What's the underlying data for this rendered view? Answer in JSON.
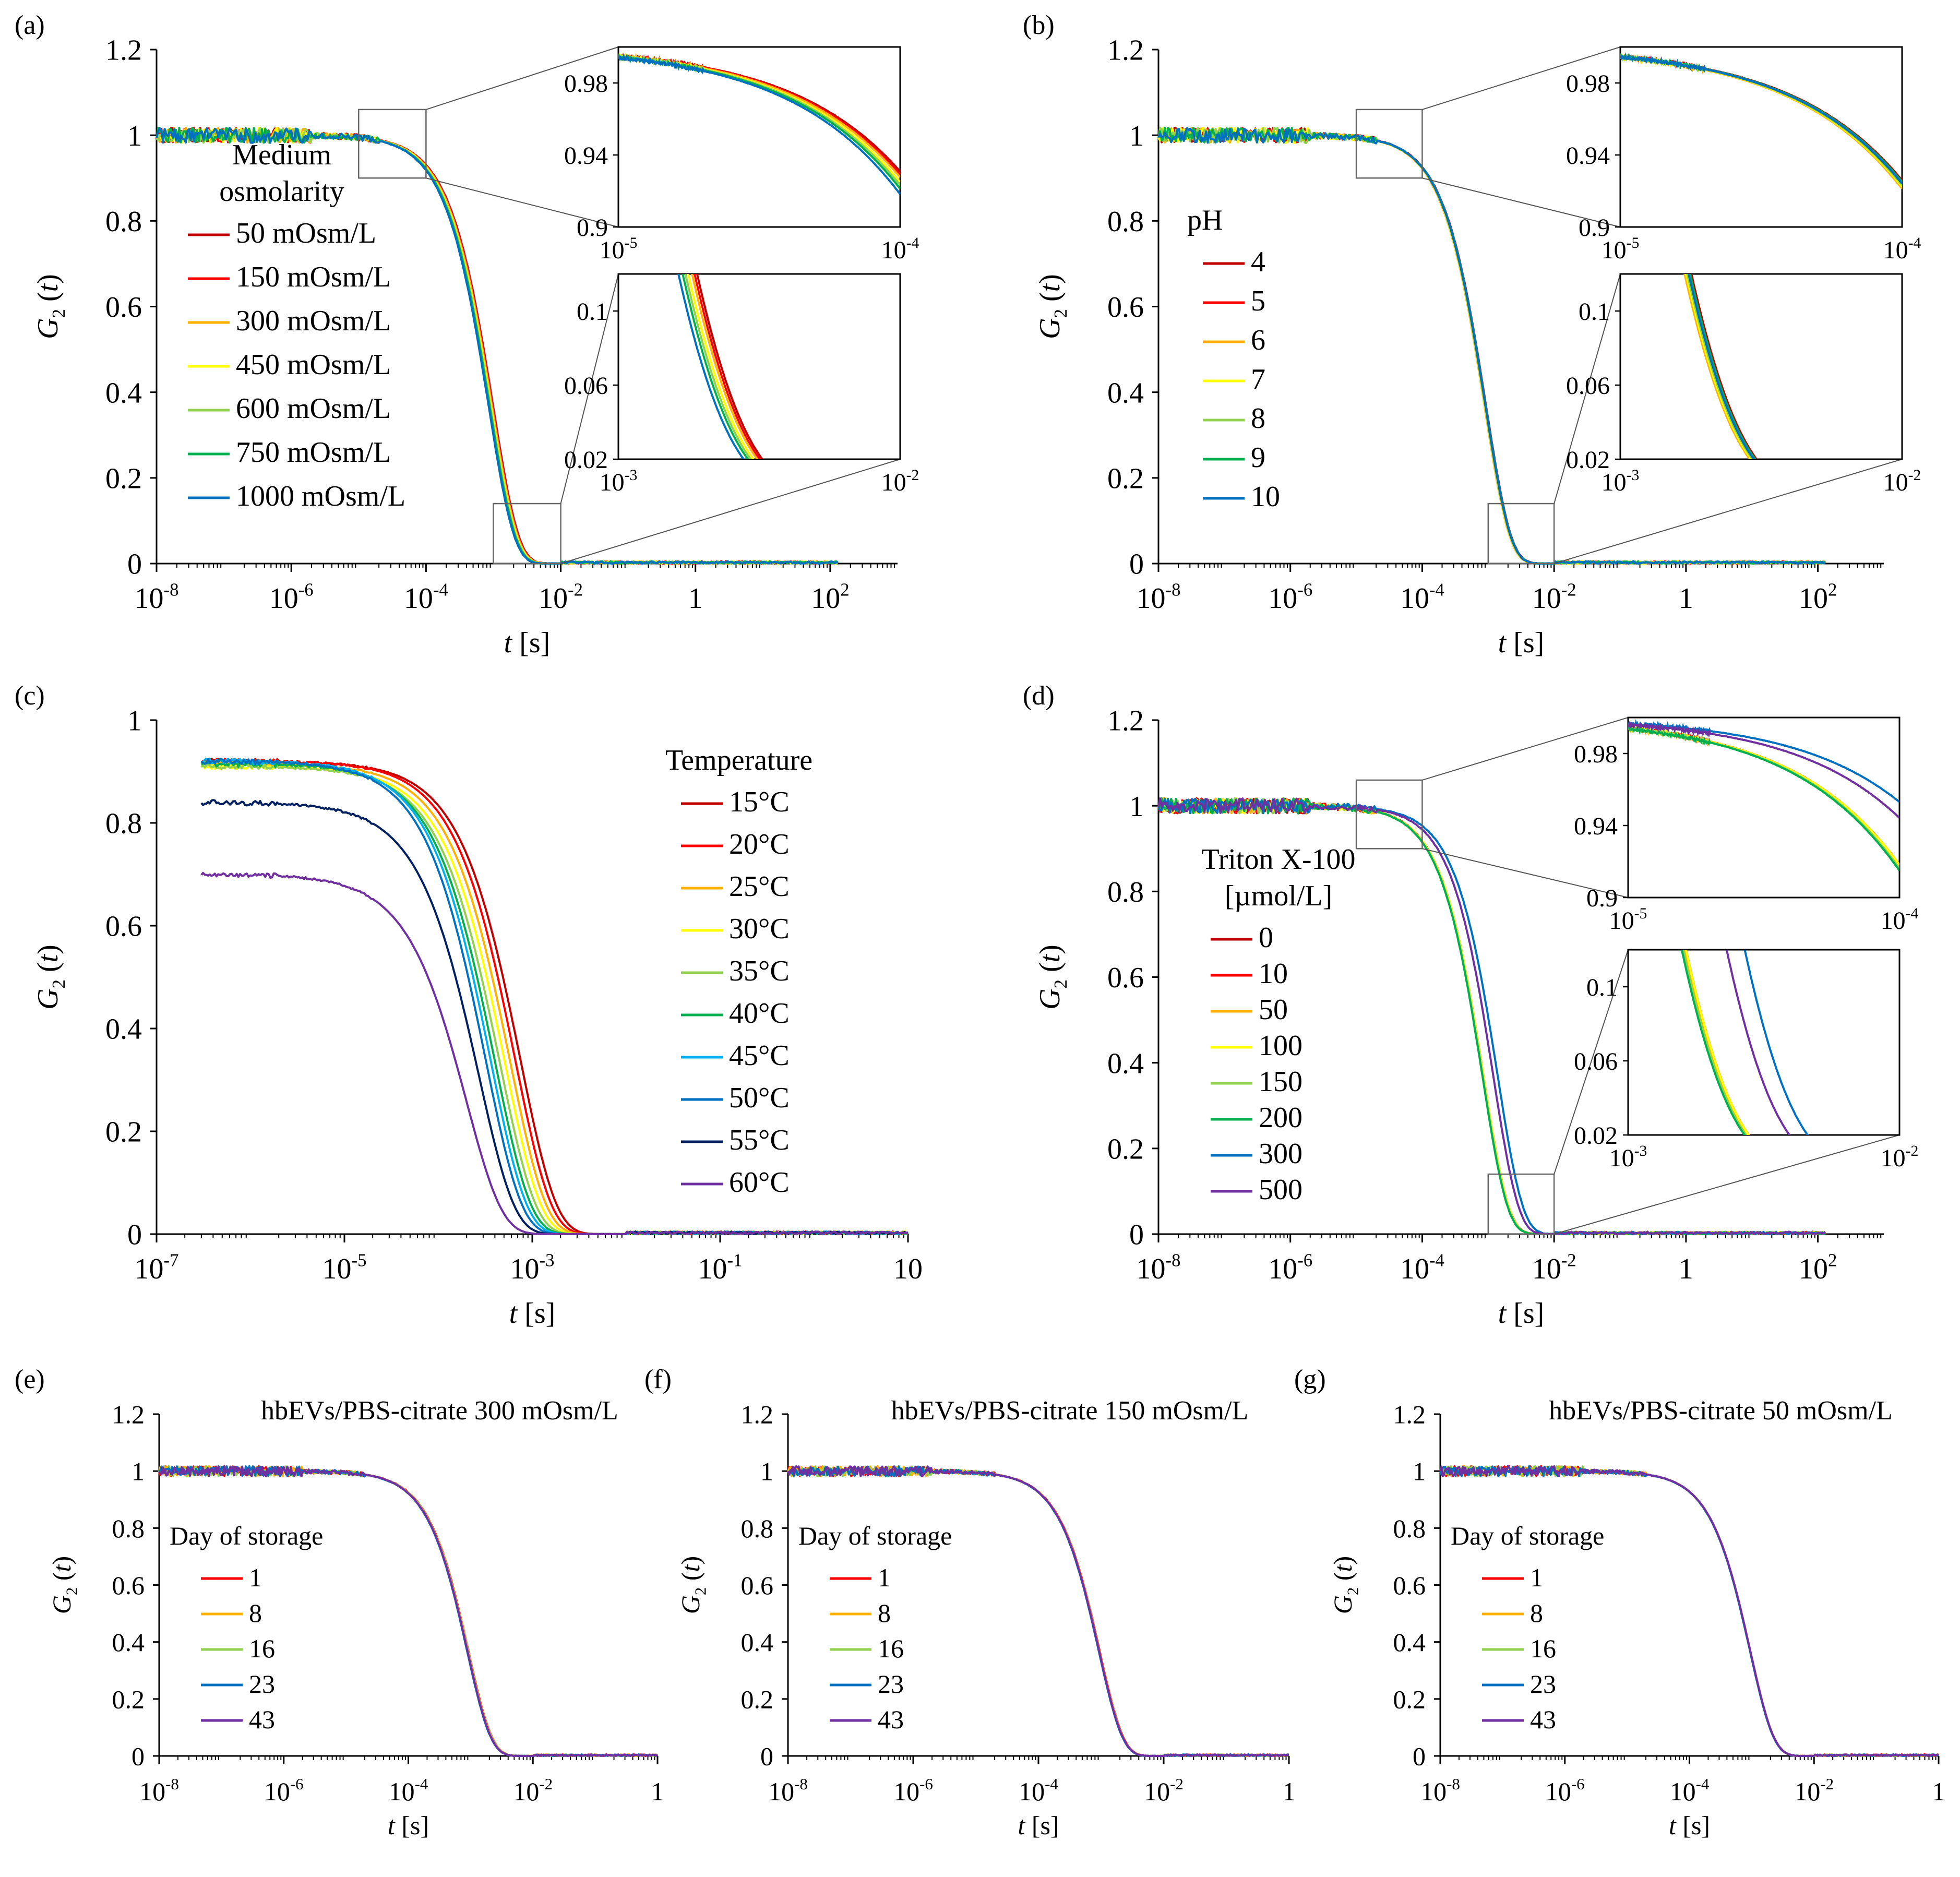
{
  "figure": {
    "colors": {
      "dark_red": "#c00000",
      "red": "#ff0000",
      "orange": "#ffb000",
      "yellow": "#ffff00",
      "light_green": "#92d050",
      "green": "#00b050",
      "cyan": "#00b0f0",
      "blue": "#0070c0",
      "dark_blue": "#002060",
      "purple": "#7030a0"
    }
  },
  "chart_data": [
    {
      "panel": "(a)",
      "type": "line",
      "xscale": "log",
      "xlim": [
        1e-08,
        1000
      ],
      "ylim": [
        0,
        1.2
      ],
      "xticks": [
        "10-8",
        "10-6",
        "10-4",
        "10-2",
        "1",
        "102"
      ],
      "yticks": [
        "0",
        "0.2",
        "0.4",
        "0.6",
        "0.8",
        "1",
        "1.2"
      ],
      "xlabel": "t [s]",
      "ylabel": "G2 (t)",
      "legend_title": [
        "Medium",
        "osmolarity"
      ],
      "series": [
        {
          "name": "50 mOsm/L",
          "color": "#c00000",
          "tau": 0.00099
        },
        {
          "name": "150 mOsm/L",
          "color": "#ff0000",
          "tau": 0.00097
        },
        {
          "name": "300 mOsm/L",
          "color": "#ffb000",
          "tau": 0.00095
        },
        {
          "name": "450 mOsm/L",
          "color": "#ffff00",
          "tau": 0.00092
        },
        {
          "name": "600 mOsm/L",
          "color": "#92d050",
          "tau": 0.0009
        },
        {
          "name": "750 mOsm/L",
          "color": "#00b050",
          "tau": 0.00088
        },
        {
          "name": "1000 mOsm/L",
          "color": "#0070c0",
          "tau": 0.00085
        }
      ],
      "insets": [
        {
          "xlim": [
            1e-05,
            0.0001
          ],
          "ylim": [
            0.9,
            1.0
          ],
          "xticks": [
            "10-5",
            "10-4"
          ],
          "yticks": [
            "0.9",
            "0.94",
            "0.98"
          ]
        },
        {
          "xlim": [
            0.001,
            0.01
          ],
          "ylim": [
            0.02,
            0.12
          ],
          "xticks": [
            "10-3",
            "10-2"
          ],
          "yticks": [
            "0.02",
            "0.06",
            "0.1"
          ]
        }
      ]
    },
    {
      "panel": "(b)",
      "type": "line",
      "xscale": "log",
      "xlim": [
        1e-08,
        1000
      ],
      "ylim": [
        0,
        1.2
      ],
      "xticks": [
        "10-8",
        "10-6",
        "10-4",
        "10-2",
        "1",
        "102"
      ],
      "yticks": [
        "0",
        "0.2",
        "0.4",
        "0.6",
        "0.8",
        "1",
        "1.2"
      ],
      "xlabel": "t [s]",
      "ylabel": "G2 (t)",
      "legend_title": [
        "pH"
      ],
      "series": [
        {
          "name": "4",
          "color": "#c00000",
          "tau": 0.00093
        },
        {
          "name": "5",
          "color": "#ff0000",
          "tau": 0.00091
        },
        {
          "name": "6",
          "color": "#ffb000",
          "tau": 0.00088
        },
        {
          "name": "7",
          "color": "#ffff00",
          "tau": 0.00089
        },
        {
          "name": "8",
          "color": "#92d050",
          "tau": 0.0009
        },
        {
          "name": "9",
          "color": "#00b050",
          "tau": 0.00092
        },
        {
          "name": "10",
          "color": "#0070c0",
          "tau": 0.00091
        }
      ],
      "insets": [
        {
          "xlim": [
            1e-05,
            0.0001
          ],
          "ylim": [
            0.9,
            1.0
          ],
          "xticks": [
            "10-5",
            "10-4"
          ],
          "yticks": [
            "0.9",
            "0.94",
            "0.98"
          ]
        },
        {
          "xlim": [
            0.001,
            0.01
          ],
          "ylim": [
            0.02,
            0.12
          ],
          "xticks": [
            "10-3",
            "10-2"
          ],
          "yticks": [
            "0.02",
            "0.06",
            "0.1"
          ]
        }
      ]
    },
    {
      "panel": "(c)",
      "type": "line",
      "xscale": "log",
      "xlim": [
        1e-07,
        10
      ],
      "ylim": [
        0,
        1.0
      ],
      "xticks": [
        "10-7",
        "10-5",
        "10-3",
        "10-1",
        "10"
      ],
      "yticks": [
        "0",
        "0.2",
        "0.4",
        "0.6",
        "0.8",
        "1"
      ],
      "xlabel": "t [s]",
      "ylabel": "G2 (t)",
      "legend_title": [
        "Temperature"
      ],
      "series": [
        {
          "name": "15°C",
          "color": "#c00000",
          "tau": 0.00075,
          "amp": 0.92
        },
        {
          "name": "20°C",
          "color": "#ff0000",
          "tau": 0.00066,
          "amp": 0.92
        },
        {
          "name": "25°C",
          "color": "#ffb000",
          "tau": 0.00058,
          "amp": 0.915
        },
        {
          "name": "30°C",
          "color": "#ffff00",
          "tau": 0.00051,
          "amp": 0.91
        },
        {
          "name": "35°C",
          "color": "#92d050",
          "tau": 0.00045,
          "amp": 0.91
        },
        {
          "name": "40°C",
          "color": "#00b050",
          "tau": 0.0004,
          "amp": 0.915
        },
        {
          "name": "45°C",
          "color": "#00b0f0",
          "tau": 0.00036,
          "amp": 0.92
        },
        {
          "name": "50°C",
          "color": "#0070c0",
          "tau": 0.00032,
          "amp": 0.92
        },
        {
          "name": "55°C",
          "color": "#002060",
          "tau": 0.00027,
          "amp": 0.84
        },
        {
          "name": "60°C",
          "color": "#7030a0",
          "tau": 0.0002,
          "amp": 0.7
        }
      ]
    },
    {
      "panel": "(d)",
      "type": "line",
      "xscale": "log",
      "xlim": [
        1e-08,
        1000
      ],
      "ylim": [
        0,
        1.2
      ],
      "xticks": [
        "10-8",
        "10-6",
        "10-4",
        "10-2",
        "1",
        "102"
      ],
      "yticks": [
        "0",
        "0.2",
        "0.4",
        "0.6",
        "0.8",
        "1",
        "1.2"
      ],
      "xlabel": "t [s]",
      "ylabel": "G2 (t)",
      "legend_title": [
        "Triton X-100",
        "[µmol/L]"
      ],
      "series": [
        {
          "name": "0",
          "color": "#c00000",
          "tau": 0.00085
        },
        {
          "name": "10",
          "color": "#ff0000",
          "tau": 0.00085
        },
        {
          "name": "50",
          "color": "#ffb000",
          "tau": 0.00084
        },
        {
          "name": "100",
          "color": "#ffff00",
          "tau": 0.00085
        },
        {
          "name": "150",
          "color": "#92d050",
          "tau": 0.00083
        },
        {
          "name": "200",
          "color": "#00b050",
          "tau": 0.00082
        },
        {
          "name": "300",
          "color": "#0070c0",
          "tau": 0.0014
        },
        {
          "name": "500",
          "color": "#7030a0",
          "tau": 0.0012
        }
      ],
      "insets": [
        {
          "xlim": [
            1e-05,
            0.0001
          ],
          "ylim": [
            0.9,
            1.0
          ],
          "xticks": [
            "10-5",
            "10-4"
          ],
          "yticks": [
            "0.9",
            "0.94",
            "0.98"
          ]
        },
        {
          "xlim": [
            0.001,
            0.01
          ],
          "ylim": [
            0.02,
            0.12
          ],
          "xticks": [
            "10-3",
            "10-2"
          ],
          "yticks": [
            "0.02",
            "0.06",
            "0.1"
          ]
        }
      ]
    },
    {
      "panel": "(e)",
      "type": "line",
      "xscale": "log",
      "xlim": [
        1e-08,
        1
      ],
      "ylim": [
        0,
        1.2
      ],
      "xticks": [
        "10-8",
        "10-6",
        "10-4",
        "10-2",
        "1"
      ],
      "yticks": [
        "0",
        "0.2",
        "0.4",
        "0.6",
        "0.8",
        "1",
        "1.2"
      ],
      "xlabel": "t [s]",
      "ylabel": "G2 (t)",
      "title": "hbEVs/PBS-citrate 300 mOsm/L",
      "legend_title": [
        "Day of storage"
      ],
      "series": [
        {
          "name": "1",
          "color": "#ff0000",
          "tau": 0.00092
        },
        {
          "name": "8",
          "color": "#ffb000",
          "tau": 0.00091
        },
        {
          "name": "16",
          "color": "#92d050",
          "tau": 0.0009
        },
        {
          "name": "23",
          "color": "#0070c0",
          "tau": 0.00088
        },
        {
          "name": "43",
          "color": "#7030a0",
          "tau": 0.00089
        }
      ]
    },
    {
      "panel": "(f)",
      "type": "line",
      "xscale": "log",
      "xlim": [
        1e-08,
        1
      ],
      "ylim": [
        0,
        1.2
      ],
      "xticks": [
        "10-8",
        "10-6",
        "10-4",
        "10-2",
        "1"
      ],
      "yticks": [
        "0",
        "0.2",
        "0.4",
        "0.6",
        "0.8",
        "1",
        "1.2"
      ],
      "xlabel": "t [s]",
      "ylabel": "G2 (t)",
      "title": "hbEVs/PBS-citrate 150 mOsm/L",
      "legend_title": [
        "Day of storage"
      ],
      "series": [
        {
          "name": "1",
          "color": "#ff0000",
          "tau": 0.00095
        },
        {
          "name": "8",
          "color": "#ffb000",
          "tau": 0.00094
        },
        {
          "name": "16",
          "color": "#92d050",
          "tau": 0.00093
        },
        {
          "name": "23",
          "color": "#0070c0",
          "tau": 0.00092
        },
        {
          "name": "43",
          "color": "#7030a0",
          "tau": 0.00093
        }
      ]
    },
    {
      "panel": "(g)",
      "type": "line",
      "xscale": "log",
      "xlim": [
        1e-08,
        1
      ],
      "ylim": [
        0,
        1.2
      ],
      "xticks": [
        "10-8",
        "10-6",
        "10-4",
        "10-2",
        "1"
      ],
      "yticks": [
        "0",
        "0.2",
        "0.4",
        "0.6",
        "0.8",
        "1",
        "1.2"
      ],
      "xlabel": "t [s]",
      "ylabel": "G2 (t)",
      "title": "hbEVs/PBS-citrate 50 mOsm/L",
      "legend_title": [
        "Day of storage"
      ],
      "series": [
        {
          "name": "1",
          "color": "#ff0000",
          "tau": 0.00095
        },
        {
          "name": "8",
          "color": "#ffb000",
          "tau": 0.00095
        },
        {
          "name": "16",
          "color": "#92d050",
          "tau": 0.00094
        },
        {
          "name": "23",
          "color": "#0070c0",
          "tau": 0.00094
        },
        {
          "name": "43",
          "color": "#7030a0",
          "tau": 0.00095
        }
      ]
    }
  ]
}
